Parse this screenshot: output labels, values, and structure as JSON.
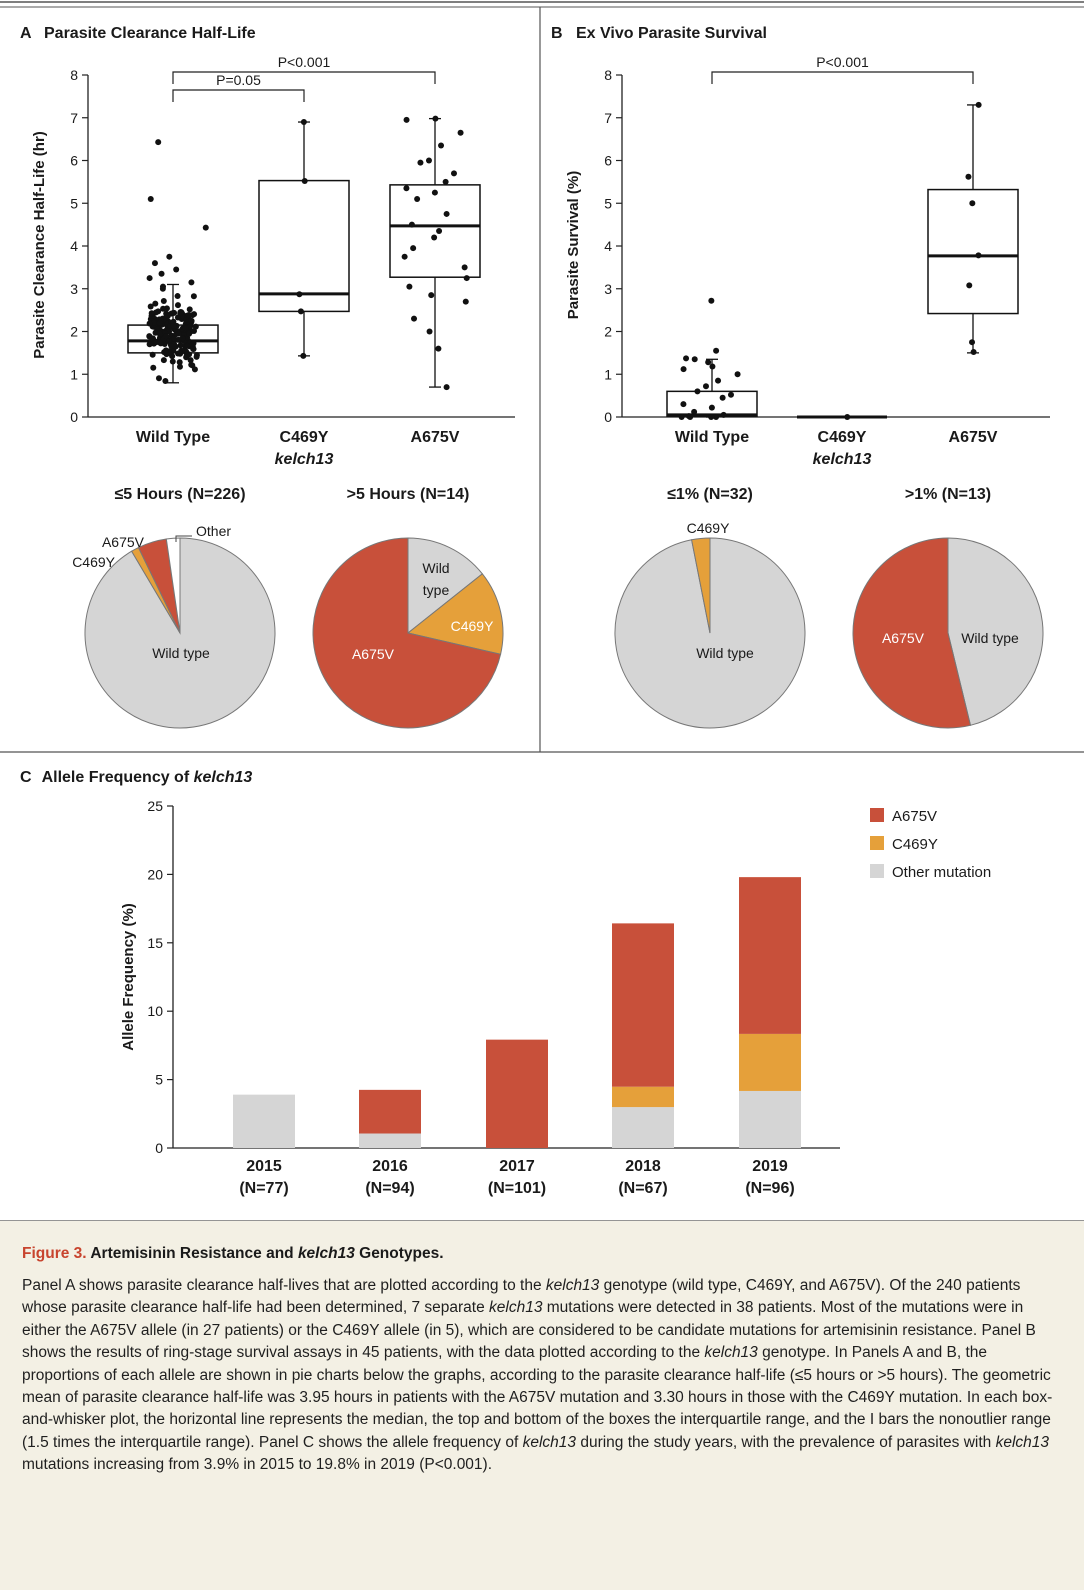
{
  "colors": {
    "a675v": "#c8503a",
    "c469y": "#e5a03a",
    "other": "#d5d5d5",
    "wild": "#d5d5d5",
    "accent": "#c8442e",
    "caption_bg": "#f3f0e4"
  },
  "chart_data": [
    {
      "panel": "A",
      "type": "box",
      "title": "Parasite Clearance Half-Life",
      "ylabel": "Parasite Clearance Half-Life (hr)",
      "ylim": [
        0,
        8
      ],
      "yticks": [
        "0",
        "1",
        "2",
        "3",
        "4",
        "5",
        "6",
        "7",
        "8"
      ],
      "categories": [
        "Wild Type",
        "C469Y",
        "A675V"
      ],
      "category_sublabel": "kelch13",
      "boxes": [
        {
          "name": "Wild Type",
          "q1": 1.5,
          "median": 1.78,
          "q3": 2.15,
          "whisker_low": 0.8,
          "whisker_high": 3.1
        },
        {
          "name": "C469Y",
          "q1": 2.47,
          "median": 2.88,
          "q3": 5.53,
          "whisker_low": 1.43,
          "whisker_high": 6.9
        },
        {
          "name": "A675V",
          "q1": 3.27,
          "median": 4.47,
          "q3": 5.43,
          "whisker_low": 0.7,
          "whisker_high": 6.98
        }
      ],
      "points": [
        {
          "group": "C469Y",
          "values": [
            6.9,
            5.52,
            2.87,
            2.47,
            1.43
          ]
        },
        {
          "group": "A675V",
          "values": [
            6.98,
            6.95,
            6.65,
            6.35,
            6.0,
            5.95,
            5.7,
            5.5,
            5.35,
            5.25,
            5.1,
            4.75,
            4.5,
            4.35,
            4.2,
            3.95,
            3.75,
            3.5,
            3.25,
            3.05,
            2.85,
            2.7,
            2.3,
            2.0,
            1.6,
            0.7
          ]
        },
        {
          "group": "Wild Type",
          "values": [
            6.43,
            5.1,
            4.43,
            3.75,
            3.6,
            3.45,
            3.35,
            3.25,
            3.15,
            3.05,
            3.0
          ]
        }
      ],
      "comparisons": [
        {
          "from": "Wild Type",
          "to": "C469Y",
          "label": "P=0.05"
        },
        {
          "from": "Wild Type",
          "to": "A675V",
          "label": "P<0.001"
        }
      ]
    },
    {
      "panel": "B",
      "type": "box",
      "title": "Ex Vivo Parasite Survival",
      "ylabel": "Parasite Survival (%)",
      "ylim": [
        0,
        8
      ],
      "yticks": [
        "0",
        "1",
        "2",
        "3",
        "4",
        "5",
        "6",
        "7",
        "8"
      ],
      "categories": [
        "Wild Type",
        "C469Y",
        "A675V"
      ],
      "category_sublabel": "kelch13",
      "boxes": [
        {
          "name": "Wild Type",
          "q1": 0.02,
          "median": 0.05,
          "q3": 0.6,
          "whisker_low": 0.0,
          "whisker_high": 1.35
        },
        {
          "name": "C469Y",
          "q1": 0.0,
          "median": 0.0,
          "q3": 0.0,
          "whisker_low": 0.0,
          "whisker_high": 0.0
        },
        {
          "name": "A675V",
          "q1": 2.42,
          "median": 3.77,
          "q3": 5.32,
          "whisker_low": 1.5,
          "whisker_high": 7.3
        }
      ],
      "points": [
        {
          "group": "Wild Type",
          "values": [
            2.72,
            1.55,
            1.37,
            1.35,
            1.28,
            1.18,
            1.12,
            1.0,
            0.85,
            0.72,
            0.6,
            0.52,
            0.45,
            0.3,
            0.22,
            0.12,
            0.05,
            0.02,
            0.0,
            0.0,
            0.0,
            0.0
          ]
        },
        {
          "group": "C469Y",
          "values": [
            0.0
          ]
        },
        {
          "group": "A675V",
          "values": [
            7.3,
            5.62,
            5.0,
            3.78,
            3.08,
            1.75,
            1.52
          ]
        }
      ],
      "comparisons": [
        {
          "from": "Wild Type",
          "to": "A675V",
          "label": "P<0.001"
        }
      ]
    },
    {
      "panel": "A-pies",
      "type": "pie",
      "pies": [
        {
          "title": "≤5 Hours (N=226)",
          "slices": [
            {
              "label": "Wild type",
              "value": 0.915,
              "color": "#d5d5d5"
            },
            {
              "label": "C469Y",
              "value": 0.013,
              "color": "#e5a03a"
            },
            {
              "label": "A675V",
              "value": 0.049,
              "color": "#c8503a"
            },
            {
              "label": "Other",
              "value": 0.023,
              "color": "#ffffff"
            }
          ]
        },
        {
          "title": ">5 Hours (N=14)",
          "slices": [
            {
              "label": "Wild type",
              "value": 0.143,
              "color": "#d5d5d5"
            },
            {
              "label": "C469Y",
              "value": 0.143,
              "color": "#e5a03a"
            },
            {
              "label": "A675V",
              "value": 0.714,
              "color": "#c8503a"
            }
          ]
        }
      ]
    },
    {
      "panel": "B-pies",
      "type": "pie",
      "pies": [
        {
          "title": "≤1% (N=32)",
          "slices": [
            {
              "label": "Wild type",
              "value": 0.969,
              "color": "#d5d5d5"
            },
            {
              "label": "C469Y",
              "value": 0.031,
              "color": "#e5a03a"
            }
          ]
        },
        {
          "title": ">1% (N=13)",
          "slices": [
            {
              "label": "Wild type",
              "value": 0.462,
              "color": "#d5d5d5"
            },
            {
              "label": "A675V",
              "value": 0.538,
              "color": "#c8503a"
            }
          ]
        }
      ]
    },
    {
      "panel": "C",
      "type": "bar",
      "stacked": true,
      "title_prefix": "Allele Frequency of ",
      "title_italic": "kelch13",
      "ylabel": "Allele Frequency (%)",
      "ylim": [
        0,
        25
      ],
      "yticks": [
        "0",
        "5",
        "10",
        "15",
        "20",
        "25"
      ],
      "categories": [
        "2015",
        "2016",
        "2017",
        "2018",
        "2019"
      ],
      "category_ns": [
        "(N=77)",
        "(N=94)",
        "(N=101)",
        "(N=67)",
        "(N=96)"
      ],
      "series": [
        {
          "name": "Other mutation",
          "color": "#d5d5d5",
          "values": [
            3.9,
            1.06,
            0,
            2.99,
            4.17
          ]
        },
        {
          "name": "C469Y",
          "color": "#e5a03a",
          "values": [
            0,
            0,
            0,
            1.49,
            4.17
          ]
        },
        {
          "name": "A675V",
          "color": "#c8503a",
          "values": [
            0,
            3.19,
            7.92,
            11.94,
            11.46
          ]
        }
      ],
      "legend_order": [
        "A675V",
        "C469Y",
        "Other mutation"
      ],
      "legend_position": "top-right"
    }
  ],
  "caption": {
    "fig_label": "Figure 3.",
    "title_pre": " Artemisinin Resistance and ",
    "title_italic": "kelch13",
    "title_post": " Genotypes.",
    "body": [
      {
        "t": "Panel A shows parasite clearance half-lives that are plotted according to the "
      },
      {
        "i": "kelch13"
      },
      {
        "t": " genotype (wild type, C469Y, and A675V). Of the 240 patients whose parasite clearance half-life had been determined, 7 separate "
      },
      {
        "i": "kelch13"
      },
      {
        "t": " mutations were detected in 38 patients. Most of the mutations were in either the A675V allele (in 27 patients) or the C469Y allele (in 5), which are considered to be candidate mutations for artemisinin resistance. Panel B shows the results of ring-stage survival assays in 45 patients, with the data plotted according to the "
      },
      {
        "i": "kelch13"
      },
      {
        "t": " genotype. In Panels A and B, the proportions of each allele are shown in pie charts below the graphs, according to the parasite clearance half-life (≤5 hours or >5 hours). The geometric mean of parasite clearance half-life was 3.95 hours in patients with the A675V mutation and 3.30 hours in those with the C469Y mutation. In each box-and-whisker plot, the horizontal line represents the median, the top and bottom of the boxes the interquartile range, and the I bars the nonoutlier range (1.5 times the interquartile range). Panel C shows the allele frequency of "
      },
      {
        "i": "kelch13"
      },
      {
        "t": " during the study years, with the prevalence of parasites with "
      },
      {
        "i": "kelch13"
      },
      {
        "t": " mutations increasing from 3.9% in 2015 to 19.8% in 2019 (P<0.001)."
      }
    ]
  }
}
